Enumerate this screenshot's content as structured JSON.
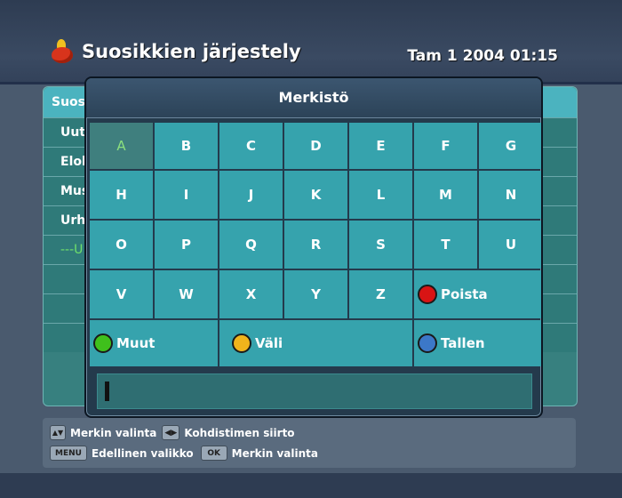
{
  "header": {
    "title": "Suosikkien järjestely",
    "datetime": "Tam 1 2004 01:15",
    "icon": "favorites-flame-icon"
  },
  "background_list": {
    "header": "Suos",
    "rows": [
      "Uut",
      "Elol",
      "Mus",
      "Urh",
      "---U"
    ]
  },
  "dialog": {
    "title": "Merkistö",
    "selected_key": "A",
    "letter_rows": [
      [
        "A",
        "B",
        "C",
        "D",
        "E",
        "F",
        "G"
      ],
      [
        "H",
        "I",
        "J",
        "K",
        "L",
        "M",
        "N"
      ],
      [
        "O",
        "P",
        "Q",
        "R",
        "S",
        "T",
        "U"
      ],
      [
        "V",
        "W",
        "X",
        "Y",
        "Z"
      ]
    ],
    "delete_label": "Poista",
    "more_label": "Muut",
    "space_label": "Väli",
    "save_label": "Tallen",
    "input_value": ""
  },
  "hints": {
    "updown_icon": "up-down-arrows-icon",
    "select_char": "Merkin valinta",
    "leftright_icon": "left-right-arrows-icon",
    "move_cursor": "Kohdistimen siirto",
    "menu_key": "MENU",
    "prev_menu": "Edellinen valikko",
    "ok_key": "OK",
    "select_char2": "Merkin valinta"
  },
  "colors": {
    "key_bg": "#36a3ad",
    "selected_key_text": "#8ce07e",
    "delete_dot": "#d81414",
    "more_dot": "#3fc01c",
    "space_dot": "#f0b41c",
    "save_dot": "#3c78c8"
  }
}
